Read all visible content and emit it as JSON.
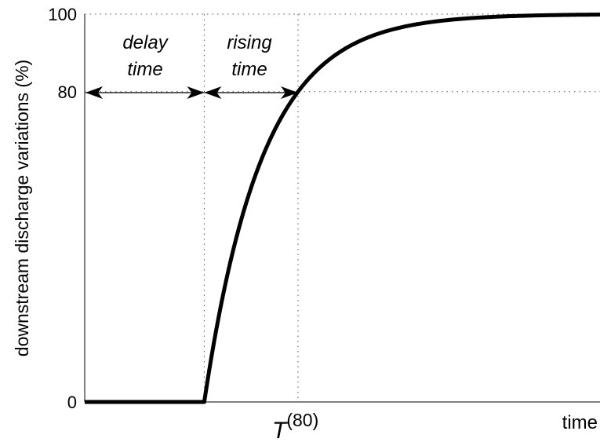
{
  "chart_data": {
    "type": "line",
    "xlabel": "time",
    "ylabel": "downstream discharge variations (%)",
    "ylim": [
      0,
      100
    ],
    "xlim": [
      0,
      1
    ],
    "ytick_labels": [
      "0",
      "80",
      "100"
    ],
    "ytick_values": [
      0,
      80,
      100
    ],
    "grid": "dotted reference lines at y=80 and y=100, and at delay end and T(80)",
    "delay_end_x": 0.232,
    "t80_x": 0.414,
    "series": [
      {
        "values": [
          {
            "x": 0,
            "y": 0
          },
          {
            "x": 0.232,
            "y": 0
          }
        ],
        "note": "exponential rise after delay_end_x reaching 80 at t80_x and approaching 100"
      }
    ],
    "annotations": {
      "delay_line1": "delay",
      "delay_line2": "time",
      "rising_line1": "rising",
      "rising_line2": "time",
      "t80_main": "T",
      "t80_sup": "(80)"
    }
  }
}
